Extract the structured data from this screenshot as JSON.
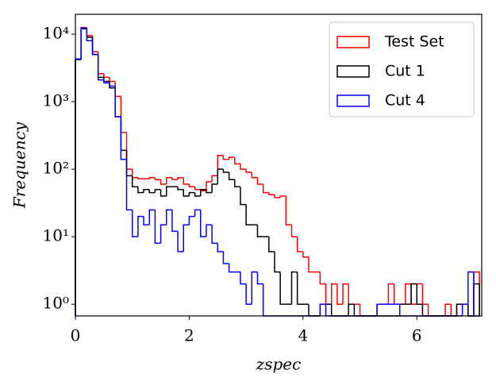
{
  "chart_data": {
    "type": "histogram",
    "xlabel": "zspec",
    "ylabel": "Frequency",
    "bins": [
      0.0,
      0.1,
      0.2,
      0.3,
      0.4,
      0.5,
      0.6,
      0.7,
      0.8,
      0.9,
      1.0,
      1.1,
      1.2,
      1.3,
      1.4,
      1.5,
      1.6,
      1.7,
      1.8,
      1.9,
      2.0,
      2.1,
      2.2,
      2.3,
      2.4,
      2.5,
      2.6,
      2.7,
      2.8,
      2.9,
      3.0,
      3.1,
      3.2,
      3.3,
      3.4,
      3.5,
      3.6,
      3.7,
      3.8,
      3.9,
      4.0,
      4.1,
      4.2,
      4.3,
      4.4,
      4.5,
      4.6,
      4.7,
      4.8,
      4.9,
      5.0,
      5.1,
      5.2,
      5.3,
      5.4,
      5.5,
      5.6,
      5.7,
      5.8,
      5.9,
      6.0,
      6.1,
      6.2,
      6.3,
      6.4,
      6.5,
      6.6,
      6.7,
      6.8,
      6.9,
      7.0,
      7.1
    ],
    "series": [
      {
        "name": "Test Set",
        "color": "#ff0000",
        "values": [
          4300,
          12500,
          9500,
          5500,
          2600,
          2300,
          2000,
          1200,
          350,
          100,
          75,
          72,
          72,
          75,
          70,
          60,
          75,
          70,
          75,
          60,
          55,
          50,
          48,
          65,
          80,
          160,
          140,
          150,
          120,
          100,
          90,
          75,
          60,
          45,
          42,
          38,
          40,
          15,
          10,
          6,
          5,
          3,
          3,
          2,
          1,
          2,
          1,
          2,
          1,
          1,
          0,
          0,
          0,
          1,
          1,
          2,
          1,
          1,
          2,
          1,
          2,
          1,
          0,
          0,
          0,
          1,
          0,
          1,
          1,
          0,
          3
        ]
      },
      {
        "name": "Cut 1",
        "color": "#000000",
        "values": [
          4200,
          12000,
          9000,
          5000,
          2300,
          2000,
          1600,
          600,
          190,
          80,
          55,
          45,
          50,
          45,
          50,
          40,
          55,
          55,
          50,
          40,
          45,
          40,
          50,
          45,
          60,
          100,
          90,
          70,
          55,
          30,
          15,
          15,
          10,
          10,
          6,
          3,
          1,
          1,
          3,
          1,
          1,
          0,
          0,
          1,
          1,
          0,
          0,
          0,
          1,
          0,
          0,
          0,
          0,
          0,
          0,
          0,
          0,
          1,
          1,
          2,
          1,
          0,
          0,
          0,
          0,
          0,
          0,
          1,
          1,
          0,
          2
        ]
      },
      {
        "name": "Cut 4",
        "color": "#0000ff",
        "values": [
          4300,
          12300,
          8000,
          5000,
          2100,
          1900,
          1700,
          600,
          140,
          25,
          10,
          20,
          15,
          25,
          8,
          15,
          25,
          12,
          6,
          15,
          20,
          25,
          10,
          15,
          8,
          6,
          4,
          3,
          3,
          2,
          1,
          3,
          2,
          0,
          0,
          0,
          0,
          0,
          0,
          0,
          0,
          0,
          0,
          1,
          0,
          0,
          0,
          0,
          0,
          0,
          0,
          0,
          0,
          1,
          1,
          1,
          1,
          0,
          0,
          0,
          0,
          0,
          0,
          0,
          0,
          0,
          0,
          0,
          1,
          3,
          0
        ]
      }
    ],
    "xlim": [
      0,
      7.14
    ],
    "xticks": [
      0,
      2,
      4,
      6
    ],
    "ylim": [
      0.67,
      19700
    ],
    "yscale": "log",
    "yticks": [
      {
        "value": 1,
        "label": "10⁰"
      },
      {
        "value": 10,
        "label": "10¹"
      },
      {
        "value": 100,
        "label": "10²"
      },
      {
        "value": 1000,
        "label": "10³"
      },
      {
        "value": 10000,
        "label": "10⁴"
      }
    ],
    "legend": "upper right",
    "grid": false
  }
}
